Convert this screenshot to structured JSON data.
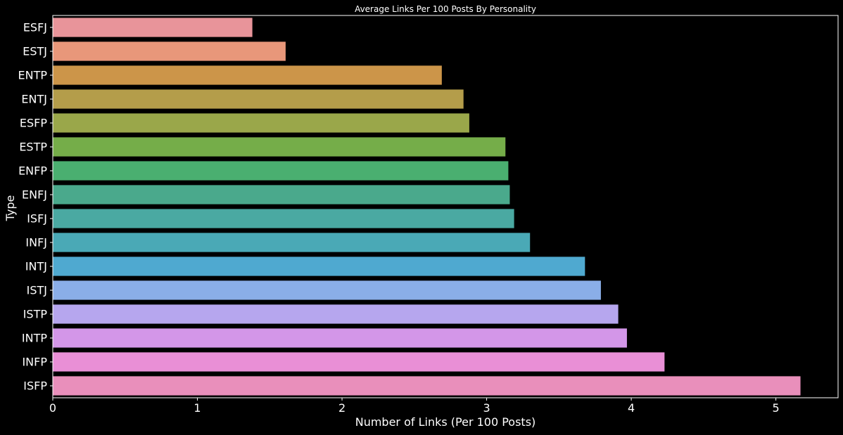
{
  "chart_data": {
    "type": "bar",
    "orientation": "horizontal",
    "title": "Average Links Per 100 Posts By Personality",
    "xlabel": "Number of Links (Per 100 Posts)",
    "ylabel": "Type",
    "xlim": [
      0,
      5.43
    ],
    "xticks": [
      0,
      1,
      2,
      3,
      4,
      5
    ],
    "grid": false,
    "categories": [
      "ESFJ",
      "ESTJ",
      "ENTP",
      "ENTJ",
      "ESFP",
      "ESTP",
      "ENFP",
      "ENFJ",
      "ISFJ",
      "INFJ",
      "INTJ",
      "ISTJ",
      "ISTP",
      "INTP",
      "INFP",
      "ISFP"
    ],
    "values": [
      1.38,
      1.61,
      2.69,
      2.84,
      2.88,
      3.13,
      3.15,
      3.16,
      3.19,
      3.3,
      3.68,
      3.79,
      3.91,
      3.97,
      4.23,
      5.17
    ],
    "colors": [
      "#e8949a",
      "#e8977a",
      "#cc9549",
      "#b49d4a",
      "#9aa74a",
      "#75ad49",
      "#4aaf70",
      "#4aa98c",
      "#4aa9a2",
      "#4aa9b6",
      "#4fa9d0",
      "#8aaee8",
      "#b6a6ee",
      "#d396e8",
      "#e98fd6",
      "#e98fbb"
    ]
  }
}
